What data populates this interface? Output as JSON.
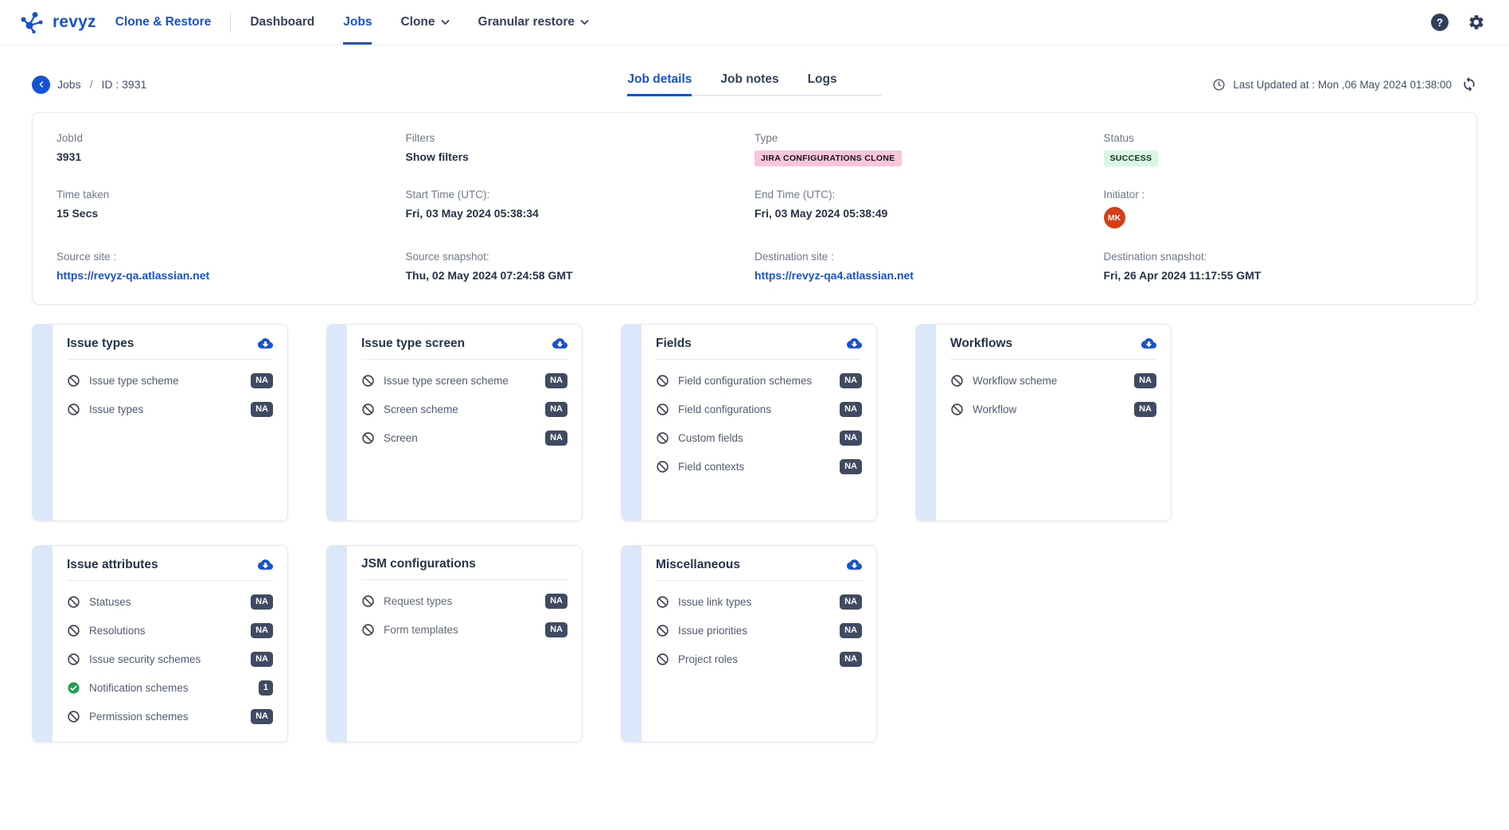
{
  "header": {
    "logo_text": "revyz",
    "product_name": "Clone & Restore",
    "nav_items": [
      {
        "label": "Dashboard",
        "active": false,
        "dropdown": false
      },
      {
        "label": "Jobs",
        "active": true,
        "dropdown": false
      },
      {
        "label": "Clone",
        "active": false,
        "dropdown": true
      },
      {
        "label": "Granular restore",
        "active": false,
        "dropdown": true
      }
    ]
  },
  "toolbar": {
    "back_label": "Jobs",
    "breadcrumb_separator": "/",
    "job_id": "ID : 3931",
    "tabs": [
      {
        "label": "Job details",
        "active": true
      },
      {
        "label": "Job notes",
        "active": false
      },
      {
        "label": "Logs",
        "active": false
      }
    ],
    "last_updated": "Last Updated at : Mon ,06 May 2024 01:38:00"
  },
  "job_summary": {
    "fields": [
      {
        "name": "job-id",
        "label": "JobId",
        "value": "3931",
        "type": "text"
      },
      {
        "name": "filters-toggle",
        "label": "Filters",
        "value": "Show filters",
        "type": "toggle"
      },
      {
        "name": "job-type",
        "label": "Type",
        "value": "JIRA CONFIGURATIONS CLONE",
        "type": "badge",
        "badge_bg": "#f8c6dc",
        "badge_color": "#141414"
      },
      {
        "name": "job-status",
        "label": "Status",
        "value": "SUCCESS",
        "type": "badge",
        "badge_bg": "#d9f6e3",
        "badge_color": "#12301f"
      },
      {
        "name": "time-taken",
        "label": "Time taken",
        "value": "15 Secs",
        "type": "text"
      },
      {
        "name": "start-time",
        "label": "Start Time (UTC):",
        "value": "Fri, 03 May 2024 05:38:34",
        "type": "text"
      },
      {
        "name": "end-time",
        "label": "End Time (UTC):",
        "value": "Fri, 03 May 2024 05:38:49",
        "type": "text"
      },
      {
        "name": "initiator",
        "label": "Initiator :",
        "value": "MK",
        "type": "avatar",
        "avatar_bg": "#d93c12"
      },
      {
        "name": "source-site",
        "label": "Source site :",
        "value": "https://revyz-qa.atlassian.net",
        "type": "link"
      },
      {
        "name": "source-snapshot",
        "label": "Source snapshot:",
        "value": "Thu, 02 May 2024 07:24:58 GMT",
        "type": "text"
      },
      {
        "name": "destination-site",
        "label": "Destination site :",
        "value": "https://revyz-qa4.atlassian.net",
        "type": "link"
      },
      {
        "name": "destination-snapshot",
        "label": "Destination snapshot:",
        "value": "Fri, 26 Apr 2024 11:17:55 GMT",
        "type": "text"
      }
    ]
  },
  "cards": [
    {
      "title": "Issue types",
      "cloud_download": true,
      "items": [
        {
          "label": "Issue type scheme",
          "icon": "blocked-icon",
          "badge": "NA",
          "linked": true
        },
        {
          "label": "Issue types",
          "icon": "blocked-icon",
          "badge": "NA",
          "linked": true
        }
      ]
    },
    {
      "title": "Issue type screen",
      "cloud_download": true,
      "items": [
        {
          "label": "Issue type screen scheme",
          "icon": "blocked-icon",
          "badge": "NA",
          "linked": true
        },
        {
          "label": "Screen scheme",
          "icon": "blocked-icon",
          "badge": "NA",
          "linked": true
        },
        {
          "label": "Screen",
          "icon": "blocked-icon",
          "badge": "NA",
          "linked": true
        }
      ]
    },
    {
      "title": "Fields",
      "cloud_download": true,
      "items": [
        {
          "label": "Field configuration schemes",
          "icon": "blocked-icon",
          "badge": "NA",
          "linked": true
        },
        {
          "label": "Field configurations",
          "icon": "blocked-icon",
          "badge": "NA",
          "linked": true
        },
        {
          "label": "Custom fields",
          "icon": "blocked-icon",
          "badge": "NA",
          "linked": true
        },
        {
          "label": "Field contexts",
          "icon": "blocked-icon",
          "badge": "NA",
          "linked": true
        }
      ]
    },
    {
      "title": "Workflows",
      "cloud_download": true,
      "items": [
        {
          "label": "Workflow scheme",
          "icon": "blocked-icon",
          "badge": "NA",
          "linked": true
        },
        {
          "label": "Workflow",
          "icon": "blocked-icon",
          "badge": "NA",
          "linked": true
        }
      ]
    },
    {
      "title": "Issue attributes",
      "cloud_download": true,
      "items": [
        {
          "label": "Statuses",
          "icon": "blocked-icon",
          "badge": "NA",
          "linked": true
        },
        {
          "label": "Resolutions",
          "icon": "blocked-icon",
          "badge": "NA",
          "linked": true
        },
        {
          "label": "Issue security schemes",
          "icon": "blocked-icon",
          "badge": "NA",
          "linked": true
        },
        {
          "label": "Notification schemes",
          "icon": "success-check-icon",
          "badge": "1",
          "linked": true
        },
        {
          "label": "Permission schemes",
          "icon": "blocked-icon",
          "badge": "NA",
          "linked": true
        }
      ]
    },
    {
      "title": "JSM configurations",
      "cloud_download": false,
      "items": [
        {
          "label": "Request types",
          "icon": "blocked-icon",
          "badge": "NA",
          "linked": false
        },
        {
          "label": "Form templates",
          "icon": "blocked-icon",
          "badge": "NA",
          "linked": false
        }
      ]
    },
    {
      "title": "Miscellaneous",
      "cloud_download": true,
      "items": [
        {
          "label": "Issue link types",
          "icon": "blocked-icon",
          "badge": "NA",
          "linked": true
        },
        {
          "label": "Issue priorities",
          "icon": "blocked-icon",
          "badge": "NA",
          "linked": true
        },
        {
          "label": "Project roles",
          "icon": "blocked-icon",
          "badge": "NA",
          "linked": true
        }
      ]
    }
  ],
  "icons": {
    "logo": "molecule-logo-icon",
    "header_right": [
      "help-icon",
      "settings-gear-icon"
    ],
    "toolbar": [
      "back-chevron-icon",
      "clock-icon",
      "refresh-icon"
    ],
    "cards": [
      "cloud-download-icon",
      "blocked-icon",
      "success-check-icon",
      "chevron-down-icon"
    ]
  },
  "colors": {
    "accent_blue": "#1653d4",
    "nav_text": "#33415e",
    "label_gray": "#6e7a8c",
    "value_dark": "#26324b",
    "type_badge_bg": "#f8c6dc",
    "status_badge_bg": "#d9f6e3",
    "na_badge_bg": "#3e4b63",
    "avatar_bg": "#d93c12",
    "card_stripe": "#dbe7fb",
    "success_green": "#1e9e4f"
  }
}
